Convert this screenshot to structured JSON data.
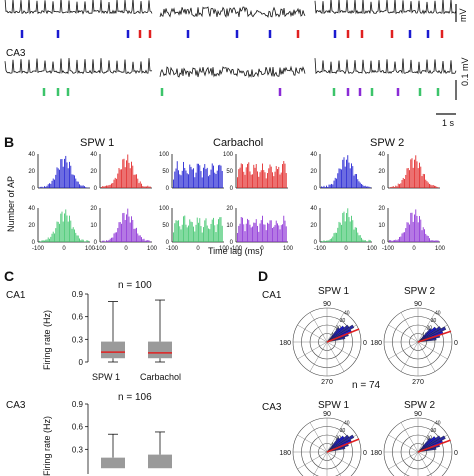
{
  "panel_a": {
    "ca3_label": "CA3",
    "scale_mv_top": "mV",
    "scale_mv_bottom": "0.1 mV",
    "scale_time": "1 s"
  },
  "panel_b": {
    "letter": "B",
    "titles": [
      "SPW 1",
      "Carbachol",
      "SPW 2"
    ],
    "ylabel": "Number of AP",
    "xlabel": "Time lag (ms)",
    "row1_yticks": [
      [
        "0",
        "20",
        "40"
      ],
      [
        "0",
        "20",
        "40"
      ],
      [
        "0",
        "50",
        "100"
      ],
      [
        "0",
        "50",
        "100"
      ],
      [
        "0",
        "20",
        "40"
      ],
      [
        "0",
        "20",
        "40"
      ]
    ],
    "row2_yticks": [
      [
        "0",
        "20",
        "40"
      ],
      [
        "0",
        "10",
        "20"
      ],
      [
        "0",
        "50",
        "100"
      ],
      [
        "0",
        "10",
        "20"
      ],
      [
        "0",
        "20",
        "40"
      ],
      [
        "0",
        "10",
        "20"
      ]
    ],
    "xticks": [
      "-100",
      "0",
      "100"
    ]
  },
  "panel_c": {
    "letter": "C",
    "ca1_label": "CA1",
    "ca3_label": "CA3",
    "n_top": "n = 100",
    "n_bottom": "n = 106",
    "ylabel": "Firing rate (Hz)",
    "categories": [
      "SPW 1",
      "Carbachol"
    ],
    "yticks_top": [
      "0.9",
      "0.6",
      "0.3",
      "0"
    ],
    "yticks_bottom": [
      "0.9",
      "0.6",
      "0.3"
    ]
  },
  "panel_d": {
    "letter": "D",
    "ca1_label": "CA1",
    "ca3_label": "CA3",
    "titles": [
      "SPW 1",
      "SPW 2"
    ],
    "n_label": "n = 74",
    "angle_labels": {
      "top": "90",
      "left": "180",
      "right": "0",
      "bottom": "270"
    },
    "radial_ticks": [
      "10",
      "20",
      "30",
      "40"
    ]
  },
  "colors": {
    "blue": "#1a1ad0",
    "red": "#e02020",
    "green": "#3cc46a",
    "purple": "#8a2bd6",
    "box_fill": "#9a9a9a",
    "median": "#e02020",
    "polar_fill": "#2a2aa0"
  },
  "chart_data": [
    {
      "type": "bar",
      "title": "SPW 1",
      "xlabel": "Time lag (ms)",
      "ylabel": "Number of AP",
      "series": [
        {
          "name": "",
          "values": [
            8,
            12,
            18,
            26,
            40,
            20,
            10
          ]
        },
        {
          "name": "",
          "values": [
            6,
            10,
            16,
            28,
            45,
            22,
            8
          ]
        }
      ]
    },
    {
      "type": "bar",
      "title": "Carbachol",
      "xlabel": "Time lag (ms)",
      "ylabel": "Number of AP",
      "series": [
        {
          "name": "",
          "values": [
            30,
            20,
            40,
            25,
            35,
            20,
            30
          ]
        },
        {
          "name": "",
          "values": [
            45,
            40,
            60,
            50,
            60,
            45,
            50
          ]
        }
      ]
    },
    {
      "type": "bar",
      "title": "SPW 2",
      "xlabel": "Time lag (ms)",
      "ylabel": "Number of AP",
      "series": [
        {
          "name": "",
          "values": [
            6,
            10,
            18,
            24,
            38,
            18,
            8
          ]
        },
        {
          "name": "",
          "values": [
            5,
            8,
            14,
            22,
            40,
            20,
            6
          ]
        }
      ]
    },
    {
      "type": "bar",
      "title": "",
      "categories": [
        "SPW 1",
        "Carbachol"
      ],
      "ylabel": "Firing rate (Hz)",
      "ylim": [
        0,
        0.9
      ],
      "boxes": [
        {
          "name": "SPW 1",
          "whisker_low": 0.0,
          "q1": 0.05,
          "median": 0.13,
          "q3": 0.27,
          "whisker_high": 0.8
        },
        {
          "name": "Carbachol",
          "whisker_low": 0.0,
          "q1": 0.05,
          "median": 0.12,
          "q3": 0.27,
          "whisker_high": 0.82
        }
      ]
    }
  ]
}
